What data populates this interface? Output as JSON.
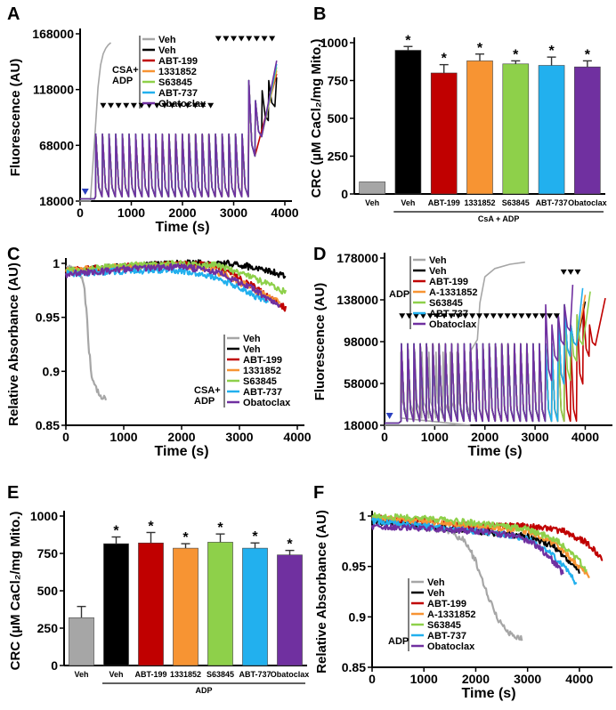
{
  "colors": {
    "Veh_gray": "#a6a6a6",
    "Veh": "#000000",
    "ABT-199": "#c00000",
    "1331852": "#f79433",
    "S63845": "#8ed04a",
    "ABT-737": "#22b0ee",
    "Obatoclax": "#7030a0",
    "arrow_blue": "#2a40c0"
  },
  "chart_data": [
    {
      "id": "A",
      "panel_label": "A",
      "type": "line",
      "title": "",
      "xlabel": "Time (s)",
      "ylabel": "Fluorescence (AU)",
      "xlim": [
        0,
        4000
      ],
      "ylim": [
        18000,
        168000
      ],
      "xticks": [
        "0",
        "1000",
        "2000",
        "3000",
        "4000"
      ],
      "yticks": [
        "18000",
        "68000",
        "118000",
        "168000"
      ],
      "legend": [
        "Veh",
        "Veh",
        "ABT-199",
        "1331852",
        "S63845",
        "ABT-737",
        "Obatoclax"
      ],
      "note": [
        "CSA+",
        "ADP"
      ],
      "series": [
        {
          "name": "Veh",
          "color": "#a6a6a6",
          "pulses": 2,
          "x": [
            0,
            200,
            300,
            350,
            400,
            450,
            500,
            550,
            600
          ],
          "y": [
            18000,
            18000,
            85000,
            120000,
            140000,
            150000,
            155000,
            158000,
            160000
          ]
        },
        {
          "name": "Veh",
          "color": "#000000",
          "pulses": 27,
          "end": 3840
        },
        {
          "name": "ABT-199",
          "color": "#c00000",
          "pulses": 24,
          "end": 3840
        },
        {
          "name": "1331852",
          "color": "#f79433",
          "pulses": 25,
          "end": 3840
        },
        {
          "name": "S63845",
          "color": "#8ed04a",
          "pulses": 25,
          "end": 3840
        },
        {
          "name": "ABT-737",
          "color": "#22b0ee",
          "pulses": 25,
          "end": 3840
        },
        {
          "name": "Obatoclax",
          "color": "#7030a0",
          "pulses": 25,
          "end": 3840
        }
      ]
    },
    {
      "id": "B",
      "panel_label": "B",
      "type": "bar",
      "title": "",
      "xlabel": "CsA + ADP",
      "ylabel": "CRC (µM CaCl₂/mg Mito.)",
      "ylim": [
        0,
        1000
      ],
      "yticks": [
        "0",
        "250",
        "500",
        "750",
        "1000"
      ],
      "categories": [
        "Veh",
        "Veh",
        "ABT-199",
        "1331852",
        "S63845",
        "ABT-737",
        "Obatoclax"
      ],
      "values": [
        80,
        950,
        800,
        880,
        860,
        850,
        840
      ],
      "errors": [
        0,
        25,
        55,
        45,
        20,
        55,
        40
      ],
      "significant": [
        false,
        true,
        true,
        true,
        true,
        true,
        true
      ],
      "bar_colors": [
        "#a6a6a6",
        "#000000",
        "#c00000",
        "#f79433",
        "#8ed04a",
        "#22b0ee",
        "#7030a0"
      ]
    },
    {
      "id": "C",
      "panel_label": "C",
      "type": "line",
      "title": "",
      "xlabel": "Time (s)",
      "ylabel": "Relative Absorbance (AU)",
      "xlim": [
        0,
        4000
      ],
      "ylim": [
        0.85,
        1.0
      ],
      "xticks": [
        "0",
        "1000",
        "2000",
        "3000",
        "4000"
      ],
      "yticks": [
        "0.85",
        "0.9",
        "0.95",
        "1"
      ],
      "legend": [
        "Veh",
        "Veh",
        "ABT-199",
        "1331852",
        "S63845",
        "ABT-737",
        "Obatoclax"
      ],
      "note": [
        "CSA+",
        "ADP"
      ],
      "series": [
        {
          "name": "Veh",
          "color": "#a6a6a6",
          "x": [
            0,
            200,
            300,
            350,
            400,
            450,
            500,
            600,
            700
          ],
          "y": [
            0.995,
            0.995,
            0.985,
            0.96,
            0.92,
            0.895,
            0.885,
            0.878,
            0.875
          ]
        },
        {
          "name": "Veh",
          "color": "#000000",
          "x": [
            0,
            500,
            1000,
            2000,
            2800,
            3400,
            3800
          ],
          "y": [
            0.993,
            0.995,
            0.997,
            1.0,
            1.0,
            0.995,
            0.988
          ]
        },
        {
          "name": "ABT-199",
          "color": "#c00000",
          "x": [
            0,
            500,
            1000,
            2000,
            2600,
            3200,
            3800
          ],
          "y": [
            0.993,
            0.995,
            0.997,
            0.999,
            0.998,
            0.98,
            0.958
          ]
        },
        {
          "name": "1331852",
          "color": "#f79433",
          "x": [
            0,
            500,
            1000,
            2000,
            2500,
            3100,
            3700
          ],
          "y": [
            0.993,
            0.995,
            0.997,
            0.998,
            0.995,
            0.98,
            0.963
          ]
        },
        {
          "name": "S63845",
          "color": "#8ed04a",
          "x": [
            0,
            500,
            1000,
            2000,
            2600,
            3200,
            3800
          ],
          "y": [
            0.993,
            0.995,
            0.998,
            1.0,
            0.998,
            0.988,
            0.973
          ]
        },
        {
          "name": "ABT-737",
          "color": "#22b0ee",
          "x": [
            0,
            500,
            1000,
            1800,
            2400,
            3000,
            3500
          ],
          "y": [
            0.99,
            0.992,
            0.993,
            0.994,
            0.99,
            0.978,
            0.963
          ]
        },
        {
          "name": "Obatoclax",
          "color": "#7030a0",
          "x": [
            0,
            500,
            1000,
            2000,
            2600,
            3200,
            3700
          ],
          "y": [
            0.99,
            0.992,
            0.995,
            0.997,
            0.992,
            0.978,
            0.96
          ]
        }
      ]
    },
    {
      "id": "D",
      "panel_label": "D",
      "type": "line",
      "title": "",
      "xlabel": "Time (s)",
      "ylabel": "Fluorescence (AU)",
      "xlim": [
        0,
        4400
      ],
      "ylim": [
        18000,
        178000
      ],
      "xticks": [
        "0",
        "1000",
        "2000",
        "3000",
        "4000"
      ],
      "yticks": [
        "18000",
        "58000",
        "98000",
        "138000",
        "178000"
      ],
      "legend": [
        "Veh",
        "Veh",
        "ABT-199",
        "A-1331852",
        "S63845",
        "ABT-737",
        "Obatoclax"
      ],
      "note": [
        "ADP"
      ],
      "series": [
        {
          "name": "Veh",
          "color": "#a6a6a6",
          "pulses": 10,
          "x": [
            1700,
            1850,
            1900,
            2000,
            2200,
            2500,
            2800
          ],
          "y": [
            88000,
            100000,
            135000,
            160000,
            168000,
            172000,
            174000
          ]
        },
        {
          "name": "Veh",
          "color": "#000000",
          "pulses": 28,
          "end": 4000
        },
        {
          "name": "ABT-199",
          "color": "#c00000",
          "pulses": 31,
          "end": 4400
        },
        {
          "name": "A-1331852",
          "color": "#f79433",
          "pulses": 28,
          "end": 4000
        },
        {
          "name": "S63845",
          "color": "#8ed04a",
          "pulses": 29,
          "end": 4100
        },
        {
          "name": "ABT-737",
          "color": "#22b0ee",
          "pulses": 28,
          "end": 3950
        },
        {
          "name": "Obatoclax",
          "color": "#7030a0",
          "pulses": 27,
          "end": 3750
        }
      ]
    },
    {
      "id": "E",
      "panel_label": "E",
      "type": "bar",
      "title": "",
      "xlabel": "ADP",
      "ylabel": "CRC (µM CaCl₂/mg Mito.)",
      "ylim": [
        0,
        1000
      ],
      "yticks": [
        "0",
        "250",
        "500",
        "750",
        "1000"
      ],
      "categories": [
        "Veh",
        "Veh",
        "ABT-199",
        "1331852",
        "S63845",
        "ABT-737",
        "Obatoclax"
      ],
      "values": [
        320,
        815,
        820,
        785,
        825,
        785,
        740
      ],
      "errors": [
        75,
        45,
        70,
        30,
        55,
        35,
        30
      ],
      "significant": [
        false,
        true,
        true,
        true,
        true,
        true,
        true
      ],
      "bar_colors": [
        "#a6a6a6",
        "#000000",
        "#c00000",
        "#f79433",
        "#8ed04a",
        "#22b0ee",
        "#7030a0"
      ]
    },
    {
      "id": "F",
      "panel_label": "F",
      "type": "line",
      "title": "",
      "xlabel": "Time (s)",
      "ylabel": "Relative Absorbance (AU)",
      "xlim": [
        0,
        4500
      ],
      "ylim": [
        0.85,
        1.0
      ],
      "xticks": [
        "0",
        "1000",
        "2000",
        "3000",
        "4000"
      ],
      "yticks": [
        "0.85",
        "0.9",
        "0.95",
        "1"
      ],
      "legend": [
        "Veh",
        "Veh",
        "ABT-199",
        "A-1331852",
        "S63845",
        "ABT-737",
        "Obatoclax"
      ],
      "note": [
        "ADP"
      ],
      "series": [
        {
          "name": "Veh",
          "color": "#a6a6a6",
          "x": [
            0,
            800,
            1500,
            1800,
            2000,
            2200,
            2400,
            2600,
            2900
          ],
          "y": [
            0.995,
            0.99,
            0.985,
            0.975,
            0.955,
            0.925,
            0.9,
            0.885,
            0.878
          ]
        },
        {
          "name": "Veh",
          "color": "#000000",
          "x": [
            0,
            1000,
            2000,
            3000,
            3500,
            3800,
            4000
          ],
          "y": [
            0.995,
            0.99,
            0.985,
            0.98,
            0.97,
            0.955,
            0.945
          ]
        },
        {
          "name": "ABT-199",
          "color": "#c00000",
          "x": [
            0,
            1000,
            2000,
            3000,
            3700,
            4100,
            4450
          ],
          "y": [
            0.998,
            0.995,
            0.99,
            0.99,
            0.985,
            0.975,
            0.958
          ]
        },
        {
          "name": "A-1331852",
          "color": "#f79433",
          "x": [
            0,
            1000,
            2000,
            3000,
            3600,
            3900,
            4200
          ],
          "y": [
            0.998,
            0.995,
            0.99,
            0.985,
            0.97,
            0.955,
            0.94
          ]
        },
        {
          "name": "S63845",
          "color": "#8ed04a",
          "x": [
            0,
            1000,
            2000,
            3000,
            3600,
            4000,
            4150
          ],
          "y": [
            1.0,
            0.998,
            0.993,
            0.987,
            0.975,
            0.955,
            0.945
          ]
        },
        {
          "name": "ABT-737",
          "color": "#22b0ee",
          "x": [
            0,
            1000,
            2000,
            3000,
            3400,
            3700,
            3950
          ],
          "y": [
            0.995,
            0.99,
            0.985,
            0.978,
            0.965,
            0.95,
            0.932
          ]
        },
        {
          "name": "Obatoclax",
          "color": "#7030a0",
          "x": [
            0,
            1000,
            2000,
            2800,
            3200,
            3500,
            3700
          ],
          "y": [
            0.99,
            0.988,
            0.985,
            0.98,
            0.97,
            0.955,
            0.942
          ]
        }
      ]
    }
  ]
}
